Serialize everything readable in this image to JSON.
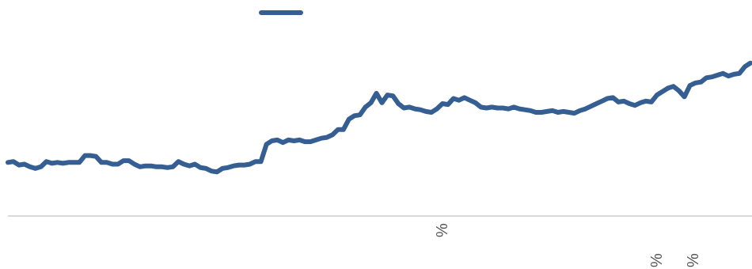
{
  "chart_data": {
    "type": "line",
    "title": "",
    "xlabel": "",
    "ylabel": "",
    "ylim": [
      0,
      250
    ],
    "grid": false,
    "legend": "top-center",
    "baseline_color": "#d9d9d9",
    "series": [
      {
        "color": "#355e92",
        "values": [
          62,
          63,
          59,
          60,
          57,
          55,
          57,
          63,
          61,
          62,
          61,
          62,
          62,
          62,
          70,
          70,
          69,
          62,
          62,
          60,
          60,
          64,
          64,
          60,
          57,
          58,
          58,
          57,
          57,
          56,
          57,
          63,
          60,
          58,
          60,
          56,
          55,
          52,
          51,
          55,
          56,
          58,
          59,
          59,
          60,
          63,
          63,
          83,
          87,
          88,
          85,
          88,
          87,
          88,
          86,
          86,
          88,
          90,
          91,
          94,
          100,
          100,
          112,
          116,
          117,
          126,
          131,
          142,
          131,
          140,
          139,
          130,
          125,
          126,
          124,
          123,
          121,
          120,
          124,
          130,
          129,
          136,
          134,
          137,
          134,
          131,
          126,
          125,
          126,
          125,
          125,
          124,
          126,
          124,
          123,
          122,
          120,
          120,
          121,
          122,
          120,
          121,
          120,
          119,
          122,
          124,
          127,
          130,
          133,
          136,
          137,
          132,
          133,
          130,
          128,
          131,
          133,
          132,
          140,
          144,
          148,
          150,
          145,
          138,
          151,
          154,
          155,
          160,
          161,
          163,
          165,
          162,
          164,
          165,
          173,
          177
        ]
      }
    ],
    "x_tick_labels": [
      "%",
      "%",
      "%"
    ]
  }
}
